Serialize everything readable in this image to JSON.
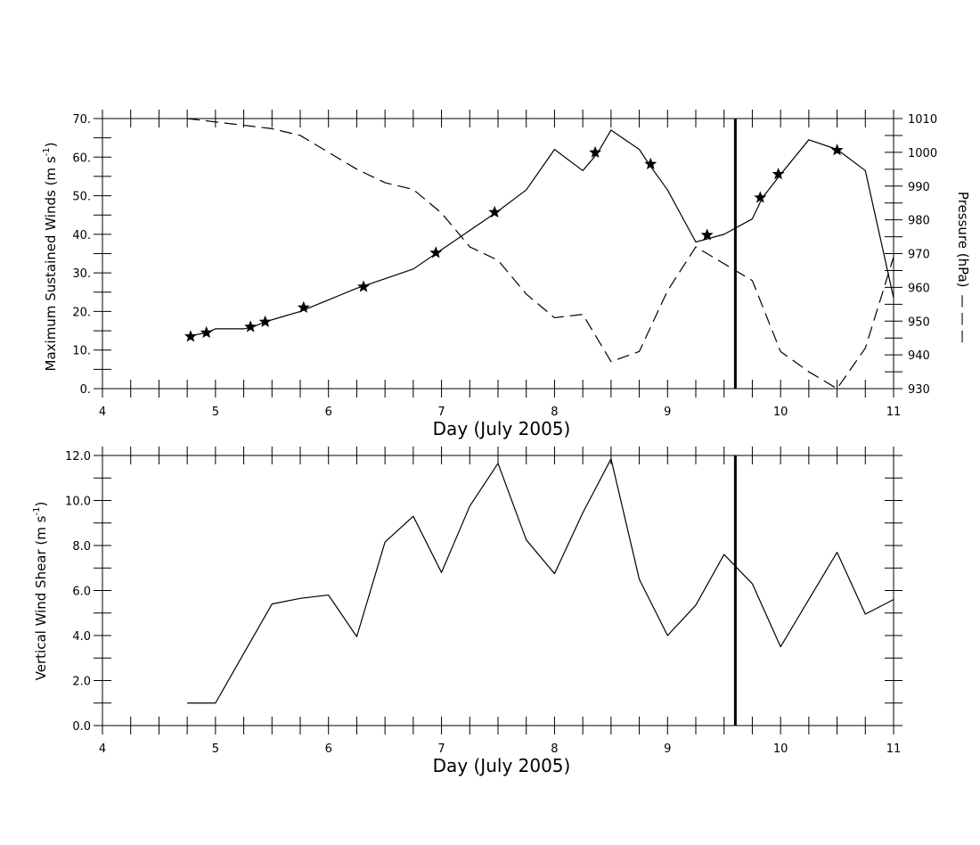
{
  "chart_data": [
    {
      "type": "line",
      "title": "",
      "xlabel": "Day (July 2005)",
      "ylabel": "Maximum Sustained Winds (m s-1)",
      "ylabel_main": "Maximum Sustained Winds (m s",
      "ylabel_sup": "-1",
      "ylabel_close": ")",
      "y2label": "Pressure (hPa)",
      "y2label_legend": "— — —",
      "xlim": [
        4,
        11
      ],
      "ylim": [
        0,
        70
      ],
      "y2lim": [
        930,
        1010
      ],
      "x_ticks": [
        "4",
        "5",
        "6",
        "7",
        "8",
        "9",
        "10",
        "11"
      ],
      "y_ticks": [
        "0.",
        "10.",
        "20.",
        "30.",
        "40.",
        "50.",
        "60.",
        "70."
      ],
      "y2_ticks": [
        "930",
        "940",
        "950",
        "960",
        "970",
        "980",
        "990",
        "1000",
        "1010"
      ],
      "grid": false,
      "vertical_marker_x": 9.6,
      "series": [
        {
          "name": "",
          "axis": "left",
          "style": "solid",
          "x": [
            4.75,
            4.92,
            5.0,
            5.25,
            5.33,
            5.46,
            5.75,
            6.0,
            6.25,
            6.5,
            6.75,
            7.0,
            7.25,
            7.5,
            7.75,
            8.0,
            8.25,
            8.38,
            8.5,
            8.75,
            8.84,
            9.0,
            9.25,
            9.5,
            9.75,
            9.84,
            10.0,
            10.25,
            10.5,
            10.75,
            11.0
          ],
          "values": [
            13.5,
            14.5,
            15.5,
            15.5,
            16,
            17.5,
            20,
            23,
            26,
            28.5,
            31,
            36,
            41,
            46,
            51.5,
            62,
            56.5,
            61,
            67,
            62,
            58,
            51.5,
            38,
            40,
            44,
            49.5,
            55.5,
            64.5,
            62,
            56.5,
            23.5
          ]
        },
        {
          "name": "",
          "axis": "left",
          "style": "markers",
          "marker": "star",
          "x": [
            4.78,
            4.92,
            5.31,
            5.44,
            5.78,
            6.31,
            6.95,
            7.47,
            8.36,
            8.85,
            9.35,
            9.82,
            9.98,
            10.5
          ],
          "values": [
            13.5,
            14.5,
            16,
            17.3,
            21,
            26.4,
            35.2,
            45.7,
            61.2,
            58.2,
            39.8,
            49.5,
            55.6,
            61.8
          ]
        },
        {
          "name": "Pressure",
          "axis": "right",
          "style": "dashed",
          "x": [
            4.75,
            5.0,
            5.25,
            5.5,
            5.75,
            6.0,
            6.25,
            6.5,
            6.75,
            7.0,
            7.25,
            7.5,
            7.75,
            8.0,
            8.25,
            8.5,
            8.75,
            9.0,
            9.25,
            9.5,
            9.75,
            10.0,
            10.25,
            10.5,
            10.75,
            11.0
          ],
          "values": [
            1010,
            1009,
            1008,
            1007,
            1005,
            1000,
            995,
            991,
            989,
            982,
            972,
            968,
            958,
            951,
            952,
            938,
            941,
            959,
            972,
            967,
            962,
            941,
            935,
            930,
            942,
            969
          ]
        }
      ]
    },
    {
      "type": "line",
      "title": "",
      "xlabel": "Day (July 2005)",
      "ylabel": "Vertical Wind Shear (m s-1)",
      "ylabel_main": "Vertical Wind Shear (m s",
      "ylabel_sup": "-1",
      "ylabel_close": ")",
      "xlim": [
        4,
        11
      ],
      "ylim": [
        0,
        12
      ],
      "x_ticks": [
        "4",
        "5",
        "6",
        "7",
        "8",
        "9",
        "10",
        "11"
      ],
      "y_ticks": [
        "0.0",
        "2.0",
        "4.0",
        "6.0",
        "8.0",
        "10.0",
        "12.0"
      ],
      "grid": false,
      "vertical_marker_x": 9.6,
      "series": [
        {
          "name": "",
          "axis": "left",
          "style": "solid",
          "x": [
            4.75,
            5.0,
            5.25,
            5.5,
            5.75,
            6.0,
            6.25,
            6.5,
            6.75,
            7.0,
            7.25,
            7.5,
            7.75,
            8.0,
            8.25,
            8.5,
            8.75,
            9.0,
            9.25,
            9.5,
            9.75,
            10.0,
            10.25,
            10.5,
            10.75,
            11.0
          ],
          "values": [
            1.0,
            1.0,
            3.2,
            5.4,
            5.65,
            5.8,
            3.95,
            8.15,
            9.3,
            6.8,
            9.75,
            11.65,
            8.25,
            6.75,
            9.45,
            11.85,
            6.5,
            4.0,
            5.35,
            7.6,
            6.3,
            3.5,
            5.6,
            7.7,
            4.95,
            5.6
          ]
        }
      ]
    }
  ]
}
